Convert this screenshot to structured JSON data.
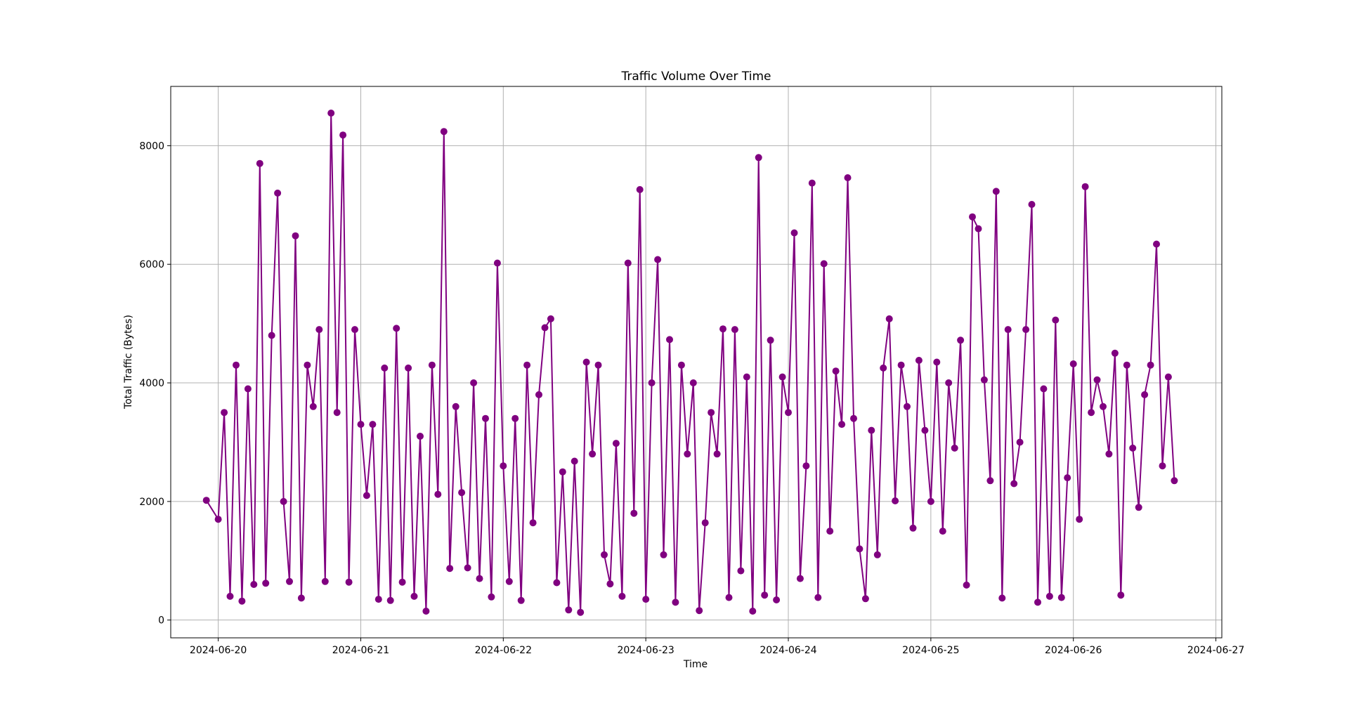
{
  "chart_data": {
    "type": "line",
    "title": "Traffic Volume Over Time",
    "xlabel": "Time",
    "ylabel": "Total Traffic (Bytes)",
    "xlim": [
      "2024-06-19 16:00",
      "2024-06-27 01:00"
    ],
    "ylim": [
      -300,
      9000
    ],
    "x_ticks": [
      "2024-06-20",
      "2024-06-21",
      "2024-06-22",
      "2024-06-23",
      "2024-06-24",
      "2024-06-25",
      "2024-06-26",
      "2024-06-27"
    ],
    "y_ticks": [
      0,
      2000,
      4000,
      6000,
      8000
    ],
    "grid": true,
    "color": "#800080",
    "marker": "circle",
    "series": [
      {
        "x": [
          "2024-06-19 22:00",
          "2024-06-20 00:00",
          "2024-06-20 01:00",
          "2024-06-20 02:00",
          "2024-06-20 03:00",
          "2024-06-20 04:00",
          "2024-06-20 05:00",
          "2024-06-20 06:00",
          "2024-06-20 07:00",
          "2024-06-20 08:00",
          "2024-06-20 09:00",
          "2024-06-20 10:00",
          "2024-06-20 11:00",
          "2024-06-20 12:00",
          "2024-06-20 13:00",
          "2024-06-20 14:00",
          "2024-06-20 15:00",
          "2024-06-20 16:00",
          "2024-06-20 17:00",
          "2024-06-20 18:00",
          "2024-06-20 19:00",
          "2024-06-20 20:00",
          "2024-06-20 21:00",
          "2024-06-20 22:00",
          "2024-06-20 23:00",
          "2024-06-21 00:00",
          "2024-06-21 01:00",
          "2024-06-21 02:00",
          "2024-06-21 03:00",
          "2024-06-21 04:00",
          "2024-06-21 05:00",
          "2024-06-21 06:00",
          "2024-06-21 07:00",
          "2024-06-21 08:00",
          "2024-06-21 09:00",
          "2024-06-21 10:00",
          "2024-06-21 11:00",
          "2024-06-21 12:00",
          "2024-06-21 13:00",
          "2024-06-21 14:00",
          "2024-06-21 15:00",
          "2024-06-21 16:00",
          "2024-06-21 17:00",
          "2024-06-21 18:00",
          "2024-06-21 19:00",
          "2024-06-21 20:00",
          "2024-06-21 21:00",
          "2024-06-21 22:00",
          "2024-06-21 23:00",
          "2024-06-22 00:00",
          "2024-06-22 01:00",
          "2024-06-22 02:00",
          "2024-06-22 03:00",
          "2024-06-22 04:00",
          "2024-06-22 05:00",
          "2024-06-22 06:00",
          "2024-06-22 07:00",
          "2024-06-22 08:00",
          "2024-06-22 09:00",
          "2024-06-22 10:00",
          "2024-06-22 11:00",
          "2024-06-22 12:00",
          "2024-06-22 13:00",
          "2024-06-22 14:00",
          "2024-06-22 15:00",
          "2024-06-22 16:00",
          "2024-06-22 17:00",
          "2024-06-22 18:00",
          "2024-06-22 19:00",
          "2024-06-22 20:00",
          "2024-06-22 21:00",
          "2024-06-22 22:00",
          "2024-06-22 23:00",
          "2024-06-23 00:00",
          "2024-06-23 01:00",
          "2024-06-23 02:00",
          "2024-06-23 03:00",
          "2024-06-23 04:00",
          "2024-06-23 05:00",
          "2024-06-23 06:00",
          "2024-06-23 07:00",
          "2024-06-23 08:00",
          "2024-06-23 09:00",
          "2024-06-23 10:00",
          "2024-06-23 11:00",
          "2024-06-23 12:00",
          "2024-06-23 13:00",
          "2024-06-23 14:00",
          "2024-06-23 15:00",
          "2024-06-23 16:00",
          "2024-06-23 17:00",
          "2024-06-23 18:00",
          "2024-06-23 19:00",
          "2024-06-23 20:00",
          "2024-06-23 21:00",
          "2024-06-23 22:00",
          "2024-06-23 23:00",
          "2024-06-24 00:00",
          "2024-06-24 01:00",
          "2024-06-24 02:00",
          "2024-06-24 03:00",
          "2024-06-24 04:00",
          "2024-06-24 05:00",
          "2024-06-24 06:00",
          "2024-06-24 07:00",
          "2024-06-24 08:00",
          "2024-06-24 09:00",
          "2024-06-24 10:00",
          "2024-06-24 11:00",
          "2024-06-24 12:00",
          "2024-06-24 13:00",
          "2024-06-24 14:00",
          "2024-06-24 15:00",
          "2024-06-24 16:00",
          "2024-06-24 17:00",
          "2024-06-24 18:00",
          "2024-06-24 19:00",
          "2024-06-24 20:00",
          "2024-06-24 21:00",
          "2024-06-24 22:00",
          "2024-06-24 23:00",
          "2024-06-25 00:00",
          "2024-06-25 01:00",
          "2024-06-25 02:00",
          "2024-06-25 03:00",
          "2024-06-25 04:00",
          "2024-06-25 05:00",
          "2024-06-25 06:00",
          "2024-06-25 07:00",
          "2024-06-25 08:00",
          "2024-06-25 09:00",
          "2024-06-25 10:00",
          "2024-06-25 11:00",
          "2024-06-25 12:00",
          "2024-06-25 13:00",
          "2024-06-25 14:00",
          "2024-06-25 15:00",
          "2024-06-25 16:00",
          "2024-06-25 17:00",
          "2024-06-25 18:00",
          "2024-06-25 19:00",
          "2024-06-25 20:00",
          "2024-06-25 21:00",
          "2024-06-25 22:00",
          "2024-06-25 23:00",
          "2024-06-26 00:00",
          "2024-06-26 01:00",
          "2024-06-26 02:00",
          "2024-06-26 03:00",
          "2024-06-26 04:00",
          "2024-06-26 05:00",
          "2024-06-26 06:00",
          "2024-06-26 07:00",
          "2024-06-26 08:00",
          "2024-06-26 09:00",
          "2024-06-26 10:00",
          "2024-06-26 11:00",
          "2024-06-26 12:00",
          "2024-06-26 13:00",
          "2024-06-26 14:00",
          "2024-06-26 15:00",
          "2024-06-26 16:00",
          "2024-06-26 17:00"
        ],
        "values": [
          2020,
          1700,
          3500,
          400,
          4300,
          320,
          3900,
          600,
          7700,
          620,
          4800,
          7200,
          2000,
          650,
          6480,
          370,
          4300,
          3600,
          4900,
          650,
          8550,
          3500,
          8180,
          640,
          4900,
          3300,
          2100,
          3300,
          350,
          4250,
          330,
          4920,
          640,
          4250,
          400,
          3100,
          150,
          4300,
          2120,
          8240,
          870,
          3600,
          2150,
          880,
          4000,
          700,
          3400,
          390,
          6020,
          2600,
          650,
          3400,
          330,
          4300,
          1640,
          3800,
          4930,
          5080,
          630,
          2500,
          170,
          2680,
          130,
          4350,
          2800,
          4300,
          1100,
          610,
          2980,
          400,
          6020,
          1800,
          7260,
          350,
          4000,
          6080,
          1100,
          4730,
          300,
          4300,
          2800,
          4000,
          160,
          1640,
          3500,
          2800,
          4910,
          380,
          4900,
          830,
          4100,
          150,
          7800,
          420,
          4720,
          340,
          4100,
          3500,
          6530,
          700,
          2600,
          7370,
          380,
          6010,
          1500,
          4200,
          3300,
          7460,
          3400,
          1200,
          360,
          3200,
          1100,
          4250,
          5080,
          2010,
          4300,
          3600,
          1550,
          4380,
          3200,
          2000,
          4350,
          1500,
          4000,
          2900,
          4720,
          590,
          6800,
          6600,
          4050,
          2350,
          7230,
          370,
          4900,
          2300,
          3000,
          4900,
          7010,
          300,
          3900,
          400,
          5060,
          380,
          2400,
          4320,
          1700,
          7310,
          3500,
          4050,
          3600,
          2800,
          4500,
          420,
          4300,
          2900,
          1900,
          3800,
          4300,
          6340,
          2600,
          4100,
          2350
        ]
      }
    ]
  }
}
